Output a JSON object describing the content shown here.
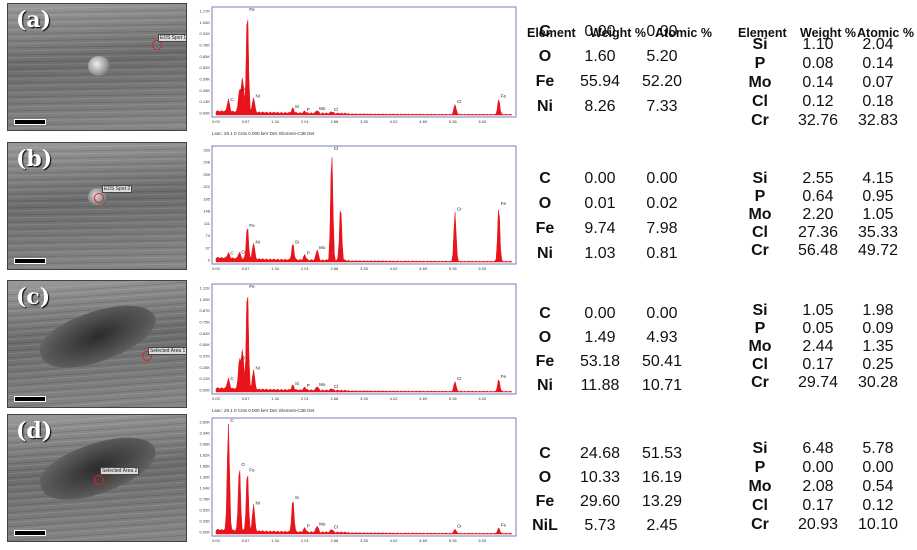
{
  "headers": {
    "element": "Element",
    "weight": "Weight %",
    "atomic": "Atomic %"
  },
  "panels": [
    {
      "label": "(a)",
      "spot_label": "EDS Spot 1",
      "left": [
        [
          "C",
          "0.00",
          "0.00"
        ],
        [
          "O",
          "1.60",
          "5.20"
        ],
        [
          "Fe",
          "55.94",
          "52.20"
        ],
        [
          "Ni",
          "8.26",
          "7.33"
        ]
      ],
      "right": [
        [
          "Si",
          "1.10",
          "2.04"
        ],
        [
          "P",
          "0.08",
          "0.14"
        ],
        [
          "Mo",
          "0.14",
          "0.07"
        ],
        [
          "Cl",
          "0.12",
          "0.18"
        ],
        [
          "Cr",
          "32.76",
          "32.83"
        ]
      ],
      "spectrum": {
        "yticks": [
          "1.17K",
          "1.04K",
          "0.91K",
          "0.78K",
          "0.65K",
          "0.52K",
          "0.39K",
          "0.26K",
          "0.13K",
          "0.00K"
        ],
        "xticks": [
          "0.00",
          "0.67",
          "1.34",
          "2.01",
          "2.68",
          "3.35",
          "4.02",
          "4.69",
          "5.36",
          "6.03"
        ],
        "peaks": [
          [
            0.28,
            0.12,
            "C"
          ],
          [
            0.53,
            0.22,
            "O"
          ],
          [
            0.6,
            0.35,
            ""
          ],
          [
            0.71,
            1.0,
            "Fe"
          ],
          [
            0.85,
            0.15,
            "Ni"
          ],
          [
            1.74,
            0.05,
            "Si"
          ],
          [
            2.01,
            0.02,
            "P"
          ],
          [
            2.29,
            0.03,
            "Mo"
          ],
          [
            2.62,
            0.02,
            "Cl"
          ],
          [
            5.41,
            0.1,
            "Cr"
          ],
          [
            6.4,
            0.15,
            "Fe"
          ]
        ],
        "footer": "Lsec: 29.1    0 Cnts    0.000 keV    Det: Element-C2B Det"
      }
    },
    {
      "label": "(b)",
      "spot_label": "EDS Spot 2",
      "left": [
        [
          "C",
          "0.00",
          "0.00"
        ],
        [
          "O",
          "0.01",
          "0.02"
        ],
        [
          "Fe",
          "9.74",
          "7.98"
        ],
        [
          "Ni",
          "1.03",
          "0.81"
        ]
      ],
      "right": [
        [
          "Si",
          "2.55",
          "4.15"
        ],
        [
          "P",
          "0.64",
          "0.95"
        ],
        [
          "Mo",
          "2.20",
          "1.05"
        ],
        [
          "Cl",
          "27.36",
          "35.33"
        ],
        [
          "Cr",
          "56.48",
          "49.72"
        ]
      ],
      "spectrum": {
        "yticks": [
          "333",
          "296",
          "259",
          "222",
          "185",
          "148",
          "111",
          "74",
          "37",
          "0"
        ],
        "xticks": [
          "0.00",
          "0.67",
          "1.34",
          "2.01",
          "2.68",
          "3.35",
          "4.02",
          "4.69",
          "5.36",
          "6.03"
        ],
        "peaks": [
          [
            0.28,
            0.05,
            "C"
          ],
          [
            0.53,
            0.06,
            "O"
          ],
          [
            0.71,
            0.3,
            "Fe"
          ],
          [
            0.85,
            0.15,
            "Ni"
          ],
          [
            1.74,
            0.15,
            "Si"
          ],
          [
            2.01,
            0.05,
            "P"
          ],
          [
            2.29,
            0.1,
            "Mo"
          ],
          [
            2.62,
            1.0,
            "Cl"
          ],
          [
            2.82,
            0.5,
            ""
          ],
          [
            5.41,
            0.45,
            "Cr"
          ],
          [
            6.4,
            0.5,
            "Fe"
          ]
        ],
        "footer": ""
      }
    },
    {
      "label": "(c)",
      "spot_label": "Selected Area 1",
      "left": [
        [
          "C",
          "0.00",
          "0.00"
        ],
        [
          "O",
          "1.49",
          "4.93"
        ],
        [
          "Fe",
          "53.18",
          "50.41"
        ],
        [
          "Ni",
          "11.88",
          "10.71"
        ]
      ],
      "right": [
        [
          "Si",
          "1.05",
          "1.98"
        ],
        [
          "P",
          "0.05",
          "0.09"
        ],
        [
          "Mo",
          "2.44",
          "1.35"
        ],
        [
          "Cl",
          "0.17",
          "0.25"
        ],
        [
          "Cr",
          "29.74",
          "30.28"
        ]
      ],
      "spectrum": {
        "yticks": [
          "1.12K",
          "1.00K",
          "0.87K",
          "0.75K",
          "0.62K",
          "0.50K",
          "0.37K",
          "0.25K",
          "0.12K",
          "0.00K"
        ],
        "xticks": [
          "0.00",
          "0.67",
          "1.34",
          "2.01",
          "2.68",
          "3.35",
          "4.02",
          "4.69",
          "5.36",
          "6.03"
        ],
        "peaks": [
          [
            0.28,
            0.1,
            "C"
          ],
          [
            0.53,
            0.3,
            "O"
          ],
          [
            0.6,
            0.4,
            ""
          ],
          [
            0.71,
            1.0,
            "Fe"
          ],
          [
            0.85,
            0.2,
            "Ni"
          ],
          [
            1.74,
            0.05,
            "Si"
          ],
          [
            2.01,
            0.03,
            "P"
          ],
          [
            2.29,
            0.04,
            "Mo"
          ],
          [
            2.62,
            0.02,
            "Cl"
          ],
          [
            5.41,
            0.1,
            "Cr"
          ],
          [
            6.4,
            0.12,
            "Fe"
          ]
        ],
        "footer": "Lsec: 29.1    0 Cnts    0.000 keV    Det: Element-C2B Det"
      }
    },
    {
      "label": "(d)",
      "spot_label": "Selected Area 2",
      "left": [
        [
          "C",
          "24.68",
          "51.53"
        ],
        [
          "O",
          "10.33",
          "16.19"
        ],
        [
          "Fe",
          "29.60",
          "13.29"
        ],
        [
          "NiL",
          "5.73",
          "2.45"
        ]
      ],
      "right": [
        [
          "Si",
          "6.48",
          "5.78"
        ],
        [
          "P",
          "0.00",
          "0.00"
        ],
        [
          "Mo",
          "2.08",
          "0.54"
        ],
        [
          "Cl",
          "0.17",
          "0.12"
        ],
        [
          "Cr",
          "20.93",
          "10.10"
        ]
      ],
      "spectrum": {
        "yticks": [
          "2.60K",
          "2.34K",
          "2.08K",
          "1.82K",
          "1.56K",
          "1.30K",
          "1.04K",
          "0.78K",
          "0.52K",
          "0.26K",
          "0.00K"
        ],
        "xticks": [
          "0.00",
          "0.67",
          "1.34",
          "2.01",
          "2.68",
          "3.35",
          "4.02",
          "4.69",
          "5.36",
          "6.03"
        ],
        "peaks": [
          [
            0.28,
            1.0,
            "C"
          ],
          [
            0.53,
            0.6,
            "O"
          ],
          [
            0.71,
            0.55,
            "Fe"
          ],
          [
            0.85,
            0.25,
            "Ni"
          ],
          [
            1.74,
            0.3,
            "Si"
          ],
          [
            2.01,
            0.04,
            "P"
          ],
          [
            2.29,
            0.06,
            "Mo"
          ],
          [
            2.62,
            0.03,
            "Cl"
          ],
          [
            5.41,
            0.04,
            "Cr"
          ],
          [
            6.4,
            0.05,
            "Fe"
          ]
        ],
        "footer": ""
      }
    }
  ],
  "colors": {
    "spectrum_fill": "#e8141b",
    "spectrum_frame": "#7a7ab8",
    "circle": "#d22222"
  }
}
